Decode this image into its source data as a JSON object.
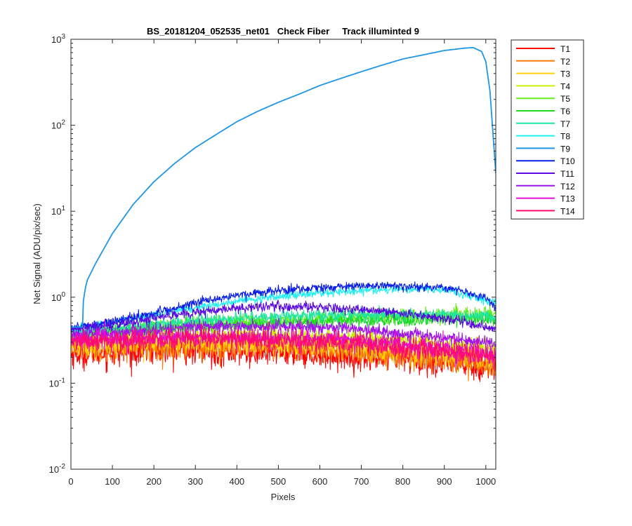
{
  "chart_data": {
    "type": "line",
    "title": "BS_20181204_052535_net01   Check Fiber     Track illuminted 9",
    "xlabel": "Pixels",
    "ylabel": "Net Signal (ADU/pix/sec)",
    "xlim": [
      0,
      1024
    ],
    "ylim": [
      0.01,
      1000
    ],
    "yscale": "log",
    "grid": false,
    "legend_position": "outside-top-right",
    "x_ticks": [
      0,
      100,
      200,
      300,
      400,
      500,
      600,
      700,
      800,
      900,
      1000
    ],
    "y_ticks": [
      {
        "value": 0.01,
        "base": "10",
        "exp": "-2"
      },
      {
        "value": 0.1,
        "base": "10",
        "exp": "-1"
      },
      {
        "value": 1,
        "base": "10",
        "exp": "0"
      },
      {
        "value": 10,
        "base": "10",
        "exp": "1"
      },
      {
        "value": 100,
        "base": "10",
        "exp": "2"
      },
      {
        "value": 1000,
        "base": "10",
        "exp": "3"
      }
    ],
    "series": [
      {
        "name": "T1",
        "color": "#ff0000",
        "noise": 0.35,
        "x": [
          0,
          100,
          200,
          300,
          400,
          500,
          600,
          700,
          800,
          900,
          1024
        ],
        "y": [
          0.22,
          0.23,
          0.24,
          0.24,
          0.23,
          0.23,
          0.22,
          0.2,
          0.19,
          0.17,
          0.15
        ]
      },
      {
        "name": "T2",
        "color": "#ff7a00",
        "noise": 0.32,
        "x": [
          0,
          100,
          200,
          300,
          400,
          500,
          600,
          700,
          800,
          900,
          1024
        ],
        "y": [
          0.26,
          0.26,
          0.27,
          0.27,
          0.27,
          0.26,
          0.25,
          0.23,
          0.21,
          0.19,
          0.16
        ]
      },
      {
        "name": "T3",
        "color": "#ffd200",
        "noise": 0.3,
        "x": [
          0,
          100,
          200,
          300,
          400,
          500,
          600,
          700,
          800,
          900,
          1024
        ],
        "y": [
          0.28,
          0.29,
          0.3,
          0.3,
          0.3,
          0.29,
          0.28,
          0.26,
          0.24,
          0.22,
          0.19
        ]
      },
      {
        "name": "T4",
        "color": "#c8f000",
        "noise": 0.22,
        "x": [
          0,
          100,
          200,
          300,
          400,
          500,
          600,
          700,
          800,
          900,
          1024
        ],
        "y": [
          0.33,
          0.34,
          0.36,
          0.37,
          0.37,
          0.36,
          0.35,
          0.33,
          0.31,
          0.29,
          0.26
        ]
      },
      {
        "name": "T5",
        "color": "#66ee1a",
        "noise": 0.18,
        "x": [
          0,
          100,
          200,
          300,
          400,
          500,
          600,
          700,
          800,
          900,
          1024
        ],
        "y": [
          0.38,
          0.41,
          0.45,
          0.49,
          0.52,
          0.54,
          0.56,
          0.58,
          0.6,
          0.62,
          0.64
        ]
      },
      {
        "name": "T6",
        "color": "#1ed828",
        "noise": 0.16,
        "x": [
          0,
          100,
          200,
          300,
          400,
          500,
          600,
          700,
          800,
          900,
          1024
        ],
        "y": [
          0.37,
          0.4,
          0.43,
          0.46,
          0.48,
          0.5,
          0.52,
          0.53,
          0.54,
          0.55,
          0.55
        ]
      },
      {
        "name": "T7",
        "color": "#1ee6a0",
        "noise": 0.14,
        "x": [
          0,
          100,
          200,
          300,
          400,
          500,
          600,
          700,
          800,
          900,
          1024
        ],
        "y": [
          0.39,
          0.43,
          0.48,
          0.53,
          0.57,
          0.6,
          0.62,
          0.63,
          0.64,
          0.63,
          0.6
        ]
      },
      {
        "name": "T8",
        "color": "#1ef0f0",
        "noise": 0.1,
        "x": [
          0,
          100,
          200,
          300,
          400,
          500,
          600,
          700,
          800,
          900,
          1024
        ],
        "y": [
          0.42,
          0.5,
          0.62,
          0.76,
          0.9,
          1.02,
          1.12,
          1.2,
          1.24,
          1.22,
          0.85
        ]
      },
      {
        "name": "T9",
        "color": "#1e96e6",
        "noise": 0.0,
        "x": [
          0,
          28,
          30,
          35,
          40,
          60,
          100,
          150,
          200,
          250,
          300,
          350,
          400,
          450,
          500,
          550,
          600,
          650,
          700,
          750,
          800,
          850,
          900,
          950,
          970,
          990,
          1000,
          1010,
          1024
        ],
        "y": [
          0.45,
          0.45,
          0.9,
          1.3,
          1.6,
          2.5,
          5.5,
          12,
          22,
          36,
          55,
          78,
          110,
          145,
          185,
          230,
          290,
          350,
          420,
          500,
          590,
          660,
          740,
          790,
          800,
          720,
          550,
          250,
          28
        ]
      },
      {
        "name": "T10",
        "color": "#0a1eea",
        "noise": 0.1,
        "x": [
          0,
          100,
          200,
          300,
          400,
          500,
          600,
          700,
          800,
          900,
          1000,
          1024
        ],
        "y": [
          0.44,
          0.52,
          0.66,
          0.86,
          1.05,
          1.2,
          1.3,
          1.35,
          1.36,
          1.3,
          1.0,
          0.72
        ]
      },
      {
        "name": "T11",
        "color": "#5a0ae0",
        "noise": 0.12,
        "x": [
          0,
          100,
          200,
          300,
          400,
          500,
          600,
          700,
          800,
          900,
          1000,
          1024
        ],
        "y": [
          0.42,
          0.47,
          0.57,
          0.67,
          0.75,
          0.78,
          0.77,
          0.72,
          0.65,
          0.56,
          0.46,
          0.42
        ]
      },
      {
        "name": "T12",
        "color": "#a010f0",
        "noise": 0.15,
        "x": [
          0,
          100,
          200,
          300,
          400,
          500,
          600,
          700,
          800,
          900,
          1000,
          1024
        ],
        "y": [
          0.36,
          0.38,
          0.42,
          0.45,
          0.46,
          0.46,
          0.45,
          0.42,
          0.38,
          0.34,
          0.3,
          0.28
        ]
      },
      {
        "name": "T13",
        "color": "#e60ad2",
        "noise": 0.22,
        "x": [
          0,
          100,
          200,
          300,
          400,
          500,
          600,
          700,
          800,
          900,
          1024
        ],
        "y": [
          0.32,
          0.33,
          0.34,
          0.35,
          0.35,
          0.34,
          0.33,
          0.31,
          0.28,
          0.25,
          0.21
        ]
      },
      {
        "name": "T14",
        "color": "#ff0a6e",
        "noise": 0.26,
        "x": [
          0,
          100,
          200,
          300,
          400,
          500,
          600,
          700,
          800,
          900,
          1024
        ],
        "y": [
          0.3,
          0.31,
          0.32,
          0.32,
          0.32,
          0.31,
          0.3,
          0.28,
          0.26,
          0.23,
          0.2
        ]
      }
    ]
  }
}
